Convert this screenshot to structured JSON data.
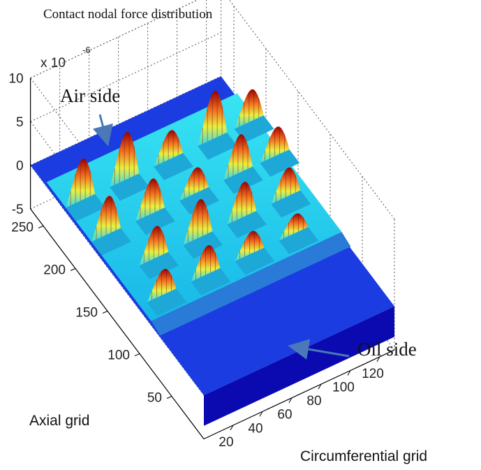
{
  "chart_data": {
    "type": "surface",
    "title": "Contact nodal force distribution",
    "xlabel": "Circumferential grid",
    "ylabel": "Axial grid",
    "zlabel": "",
    "z_multiplier": "x 10",
    "z_exponent": "-6",
    "x_ticks": [
      "20",
      "40",
      "60",
      "80",
      "100",
      "120"
    ],
    "y_ticks": [
      "50",
      "100",
      "150",
      "200",
      "250"
    ],
    "z_ticks": [
      "-5",
      "0",
      "5",
      "10"
    ],
    "xlim": [
      0,
      130
    ],
    "ylim": [
      0,
      270
    ],
    "zlim": [
      -5,
      10
    ],
    "grid": true,
    "colormap": "jet",
    "annotations": [
      {
        "text": "Air side",
        "region": "air"
      },
      {
        "text": "Oil side",
        "region": "oil"
      }
    ],
    "series": [
      {
        "ridges": [
          {
            "y": 215,
            "x": [
              10,
              40,
              70,
              100,
              125
            ],
            "peak": [
              6.5,
              7.5,
              4.5,
              7.5,
              5.0
            ]
          },
          {
            "y": 175,
            "x": [
              10,
              40,
              70,
              100,
              125
            ],
            "peak": [
              6.0,
              5.5,
              4.0,
              6.0,
              4.5
            ]
          },
          {
            "y": 135,
            "x": [
              25,
              55,
              85,
              115
            ],
            "peak": [
              5.0,
              6.0,
              5.5,
              4.5
            ]
          },
          {
            "y": 100,
            "x": [
              15,
              45,
              75,
              105
            ],
            "peak": [
              4.0,
              4.5,
              3.5,
              3.0
            ]
          }
        ]
      }
    ]
  },
  "colors": {
    "low": "#0a0ab0",
    "base": "#1a3ce0",
    "cyan": "#30e0f0",
    "mid": "#f0e030",
    "high": "#a00000",
    "arrow": "#4a78b8",
    "grid": "#555555"
  }
}
